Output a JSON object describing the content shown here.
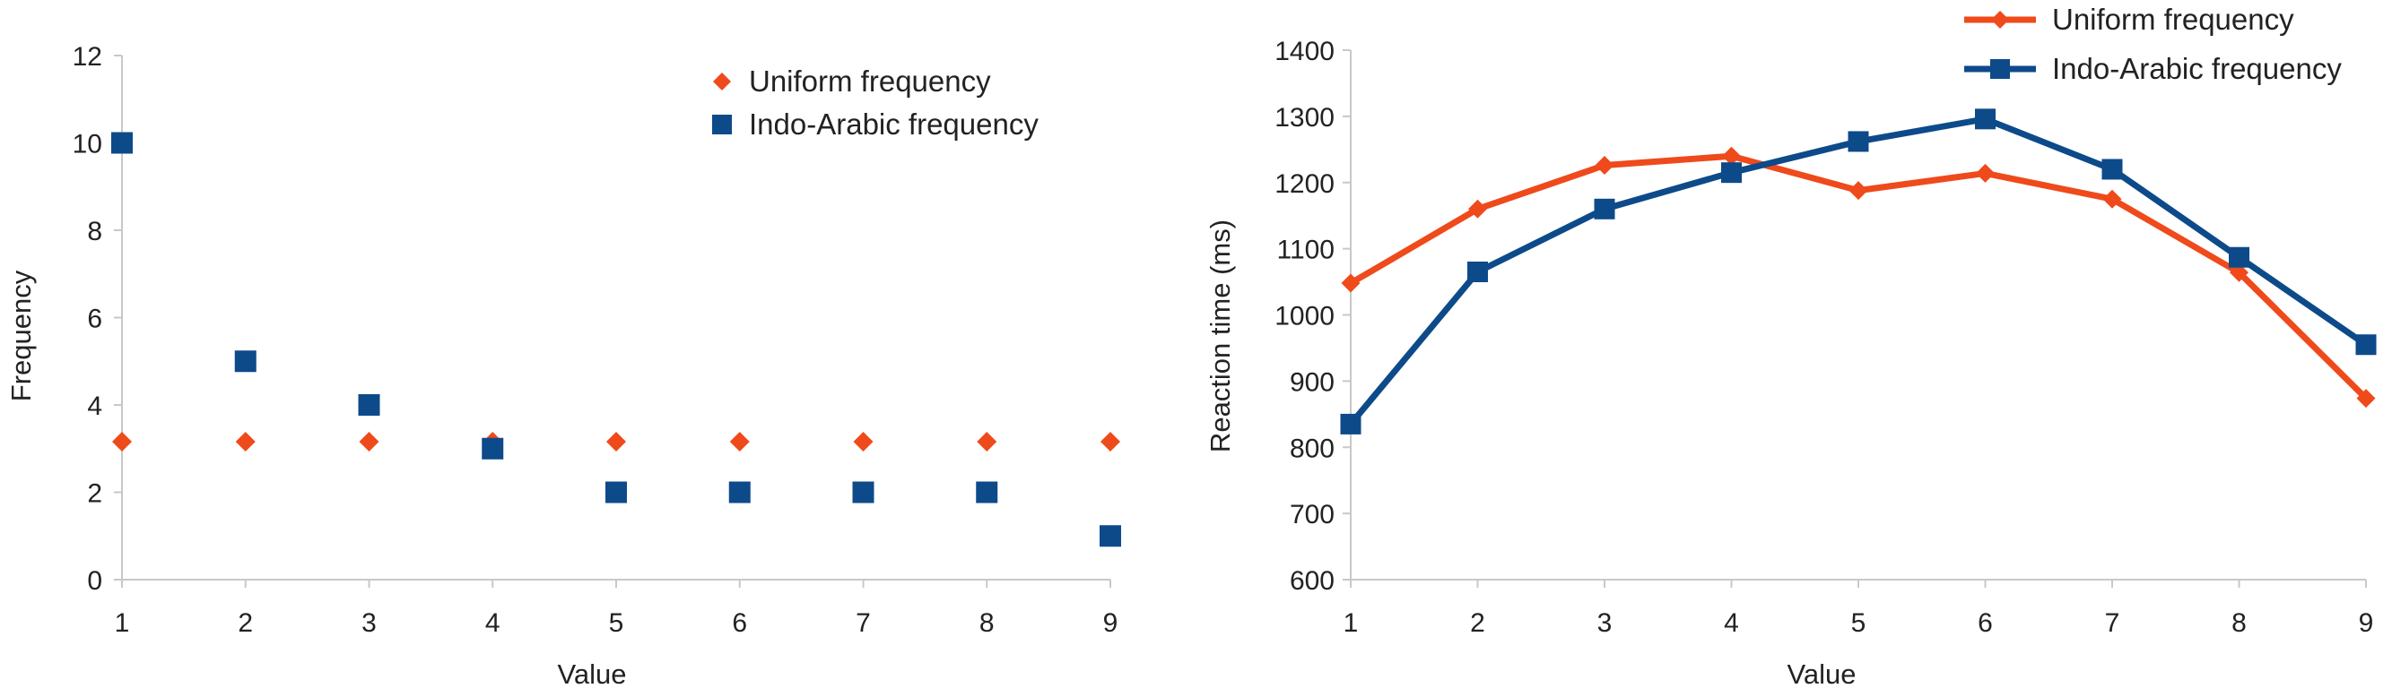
{
  "chart_data": [
    {
      "type": "scatter",
      "title": "",
      "xlabel": "Value",
      "ylabel": "Frequency",
      "xlim": [
        1,
        9
      ],
      "ylim": [
        0,
        12
      ],
      "xticks": [
        1,
        2,
        3,
        4,
        5,
        6,
        7,
        8,
        9
      ],
      "yticks": [
        0,
        2,
        4,
        6,
        8,
        10,
        12
      ],
      "grid": false,
      "legend_position": "top-right",
      "x": [
        1,
        2,
        3,
        4,
        5,
        6,
        7,
        8,
        9
      ],
      "series": [
        {
          "name": "Uniform frequency",
          "marker": "diamond",
          "color": "#ef4a1b",
          "values": [
            3.16,
            3.16,
            3.16,
            3.16,
            3.16,
            3.16,
            3.16,
            3.16,
            3.16
          ]
        },
        {
          "name": "Indo-Arabic frequency",
          "marker": "square",
          "color": "#0d4a8a",
          "values": [
            10,
            5,
            4,
            3,
            2,
            2,
            2,
            2,
            1
          ]
        }
      ]
    },
    {
      "type": "line",
      "title": "",
      "xlabel": "Value",
      "ylabel": "Reaction time (ms)",
      "xlim": [
        1,
        9
      ],
      "ylim": [
        600,
        1400
      ],
      "xticks": [
        1,
        2,
        3,
        4,
        5,
        6,
        7,
        8,
        9
      ],
      "yticks": [
        600,
        700,
        800,
        900,
        1000,
        1100,
        1200,
        1300,
        1400
      ],
      "grid": false,
      "legend_position": "top-right",
      "x": [
        1,
        2,
        3,
        4,
        5,
        6,
        7,
        8,
        9
      ],
      "series": [
        {
          "name": "Uniform frequency",
          "marker": "diamond",
          "color": "#ef4a1b",
          "values": [
            1048,
            1160,
            1226,
            1240,
            1188,
            1214,
            1175,
            1064,
            874
          ]
        },
        {
          "name": "Indo-Arabic frequency",
          "marker": "square",
          "color": "#0d4a8a",
          "values": [
            835,
            1065,
            1160,
            1215,
            1262,
            1296,
            1220,
            1087,
            955
          ]
        }
      ]
    }
  ]
}
